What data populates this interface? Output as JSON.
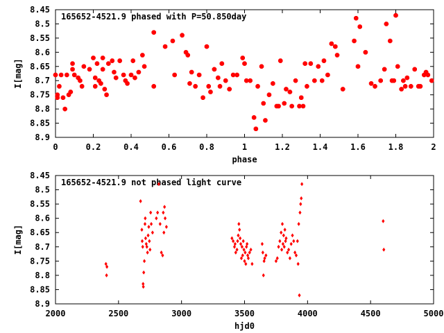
{
  "chart_data": [
    {
      "type": "scatter",
      "title": "165652-4521.9 phased with P=50.850day",
      "xlabel": "phase",
      "ylabel": "I[mag]",
      "xlim": [
        0,
        2
      ],
      "ylim": [
        8.45,
        8.9
      ],
      "y_inverted": true,
      "x_ticks": [
        "0",
        "0.2",
        "0.4",
        "0.6",
        "0.8",
        "1",
        "1.2",
        "1.4",
        "1.6",
        "1.8",
        "2"
      ],
      "y_ticks": [
        "8.45",
        "8.5",
        "8.55",
        "8.6",
        "8.65",
        "8.7",
        "8.75",
        "8.8",
        "8.85",
        "8.9"
      ],
      "marker_color": "#ff0000",
      "series": [
        {
          "x": [
            0.0,
            0.01,
            0.01,
            0.02,
            0.03,
            0.04,
            0.05,
            0.06,
            0.07,
            0.08,
            0.09,
            0.09,
            0.1,
            0.12,
            0.13,
            0.14,
            0.15,
            0.18,
            0.2,
            0.21,
            0.21,
            0.22,
            0.23,
            0.24,
            0.25,
            0.25,
            0.26,
            0.27,
            0.28,
            0.3,
            0.31,
            0.32,
            0.34,
            0.36,
            0.37,
            0.38,
            0.4,
            0.41,
            0.42,
            0.44,
            0.46,
            0.47,
            0.52,
            0.52,
            0.58,
            0.62,
            0.63,
            0.67,
            0.69,
            0.7,
            0.71,
            0.72,
            0.74,
            0.76,
            0.78,
            0.8,
            0.81,
            0.82,
            0.84,
            0.86,
            0.87,
            0.88,
            0.9,
            0.92,
            0.94,
            0.96,
            0.99,
            1.0,
            1.01,
            1.03,
            1.05,
            1.06,
            1.07,
            1.09,
            1.1,
            1.11,
            1.13,
            1.15,
            1.17,
            1.18,
            1.19,
            1.21,
            1.22,
            1.24,
            1.25,
            1.27,
            1.29,
            1.3,
            1.31,
            1.32,
            1.33,
            1.35,
            1.37,
            1.39,
            1.41,
            1.42,
            1.44,
            1.46,
            1.48,
            1.49,
            1.52,
            1.58,
            1.59,
            1.6,
            1.61,
            1.64,
            1.67,
            1.69,
            1.72,
            1.74,
            1.75,
            1.77,
            1.78,
            1.79,
            1.8,
            1.81,
            1.83,
            1.84,
            1.85,
            1.86,
            1.88,
            1.9,
            1.92,
            1.93,
            1.95,
            1.96,
            1.97,
            1.99
          ],
          "y": [
            8.68,
            8.75,
            8.76,
            8.72,
            8.68,
            8.76,
            8.8,
            8.68,
            8.75,
            8.74,
            8.66,
            8.64,
            8.68,
            8.69,
            8.7,
            8.72,
            8.65,
            8.66,
            8.62,
            8.69,
            8.72,
            8.64,
            8.7,
            8.71,
            8.62,
            8.66,
            8.73,
            8.75,
            8.64,
            8.63,
            8.67,
            8.69,
            8.63,
            8.68,
            8.7,
            8.71,
            8.68,
            8.63,
            8.69,
            8.67,
            8.61,
            8.65,
            8.53,
            8.72,
            8.58,
            8.56,
            8.68,
            8.54,
            8.6,
            8.61,
            8.71,
            8.67,
            8.72,
            8.68,
            8.76,
            8.58,
            8.72,
            8.74,
            8.66,
            8.69,
            8.72,
            8.64,
            8.7,
            8.73,
            8.68,
            8.68,
            8.62,
            8.64,
            8.7,
            8.7,
            8.83,
            8.87,
            8.72,
            8.65,
            8.78,
            8.84,
            8.75,
            8.71,
            8.79,
            8.79,
            8.63,
            8.78,
            8.73,
            8.74,
            8.79,
            8.7,
            8.79,
            8.76,
            8.79,
            8.64,
            8.72,
            8.64,
            8.7,
            8.65,
            8.7,
            8.63,
            8.68,
            8.57,
            8.58,
            8.61,
            8.73,
            8.56,
            8.48,
            8.65,
            8.51,
            8.6,
            8.71,
            8.72,
            8.7,
            8.66,
            8.5,
            8.56,
            8.7,
            8.7,
            8.47,
            8.65,
            8.73,
            8.7,
            8.72,
            8.69,
            8.72,
            8.66,
            8.72,
            8.72,
            8.68,
            8.67,
            8.68,
            8.7
          ]
        }
      ]
    },
    {
      "type": "scatter",
      "title": "165652-4521.9 not phased light curve",
      "xlabel": "hjd0",
      "ylabel": "I[mag]",
      "xlim": [
        2000,
        5000
      ],
      "ylim": [
        8.45,
        8.9
      ],
      "y_inverted": true,
      "x_ticks": [
        "2000",
        "2500",
        "3000",
        "3500",
        "4000",
        "4500",
        "5000"
      ],
      "y_ticks": [
        "8.45",
        "8.5",
        "8.55",
        "8.6",
        "8.65",
        "8.7",
        "8.75",
        "8.8",
        "8.85",
        "8.9"
      ],
      "marker_color": "#ff0000",
      "series": [
        {
          "x": [
            2400,
            2405,
            2408,
            2675,
            2685,
            2688,
            2692,
            2695,
            2697,
            2700,
            2705,
            2710,
            2712,
            2715,
            2720,
            2725,
            2730,
            2735,
            2740,
            2745,
            2750,
            2755,
            2760,
            2770,
            2800,
            2810,
            2820,
            2830,
            2840,
            2850,
            2855,
            2860,
            2865,
            2870,
            2880,
            3400,
            3410,
            3420,
            3425,
            3430,
            3440,
            3445,
            3450,
            3455,
            3460,
            3465,
            3470,
            3475,
            3480,
            3485,
            3490,
            3495,
            3500,
            3505,
            3510,
            3515,
            3520,
            3525,
            3530,
            3540,
            3550,
            3560,
            3640,
            3645,
            3650,
            3655,
            3660,
            3670,
            3750,
            3760,
            3770,
            3780,
            3790,
            3795,
            3800,
            3805,
            3810,
            3815,
            3820,
            3825,
            3830,
            3840,
            3850,
            3860,
            3870,
            3880,
            3890,
            3900,
            3910,
            3920,
            3925,
            3930,
            3935,
            3940,
            3945,
            3950,
            3955,
            4600,
            4605
          ],
          "y": [
            8.76,
            8.8,
            8.77,
            8.54,
            8.64,
            8.68,
            8.7,
            8.83,
            8.84,
            8.79,
            8.75,
            8.62,
            8.6,
            8.67,
            8.69,
            8.7,
            8.72,
            8.66,
            8.63,
            8.68,
            8.71,
            8.58,
            8.62,
            8.65,
            8.6,
            8.58,
            8.48,
            8.62,
            8.72,
            8.73,
            8.58,
            8.65,
            8.56,
            8.6,
            8.63,
            8.67,
            8.68,
            8.7,
            8.69,
            8.72,
            8.71,
            8.68,
            8.66,
            8.62,
            8.64,
            8.67,
            8.69,
            8.74,
            8.7,
            8.73,
            8.68,
            8.71,
            8.75,
            8.72,
            8.76,
            8.7,
            8.69,
            8.73,
            8.74,
            8.72,
            8.71,
            8.76,
            8.69,
            8.72,
            8.8,
            8.75,
            8.74,
            8.73,
            8.75,
            8.74,
            8.7,
            8.68,
            8.65,
            8.71,
            8.62,
            8.69,
            8.66,
            8.7,
            8.64,
            8.68,
            8.67,
            8.72,
            8.71,
            8.74,
            8.69,
            8.66,
            8.68,
            8.72,
            8.73,
            8.68,
            8.76,
            8.62,
            8.87,
            8.58,
            8.55,
            8.53,
            8.48,
            8.61,
            8.71
          ]
        }
      ]
    }
  ]
}
